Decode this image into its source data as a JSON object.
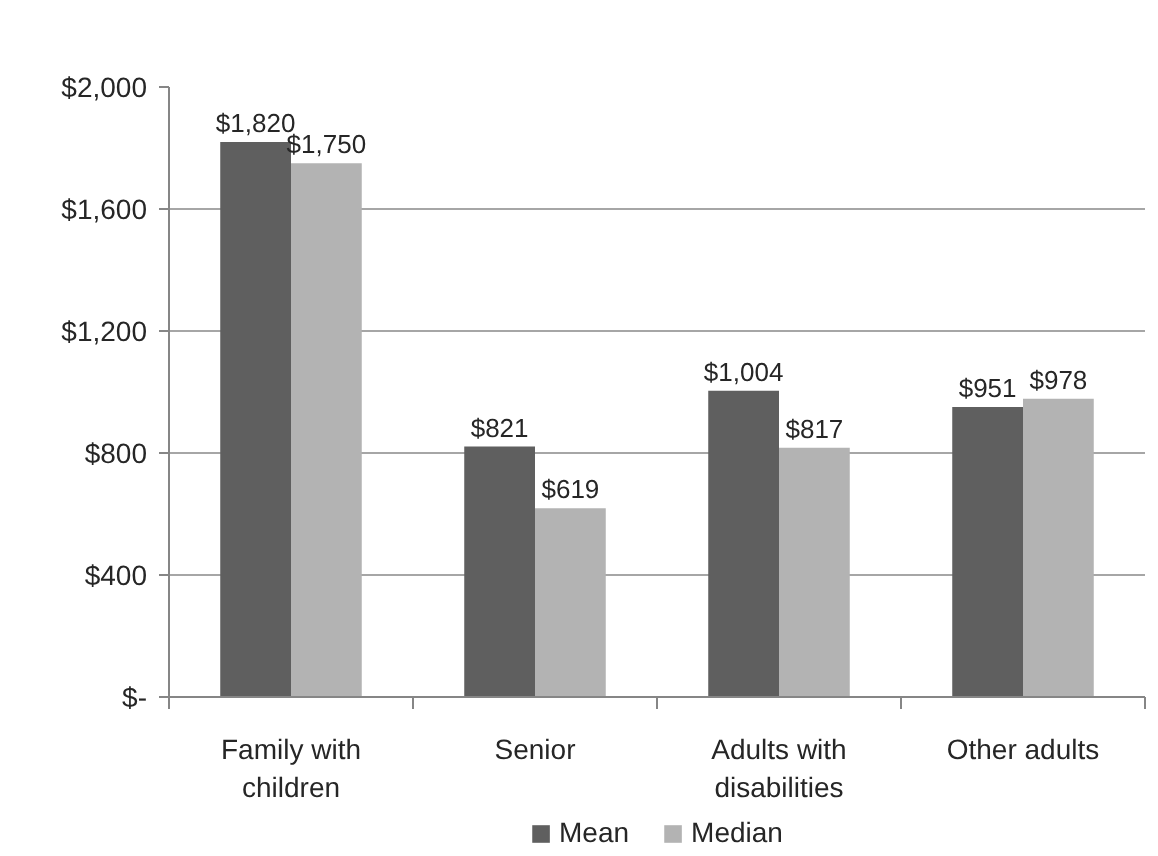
{
  "chart_data": {
    "type": "bar",
    "categories": [
      "Family with children",
      "Senior",
      "Adults with disabilities",
      "Other adults"
    ],
    "series": [
      {
        "name": "Mean",
        "color": "#5f5f5f",
        "values": [
          1820,
          821,
          1004,
          951
        ],
        "value_labels": [
          "$1,820",
          "$821",
          "$1,004",
          "$951"
        ]
      },
      {
        "name": "Median",
        "color": "#b3b3b3",
        "values": [
          1750,
          619,
          817,
          978
        ],
        "value_labels": [
          "$1,750",
          "$619",
          "$817",
          "$978"
        ]
      }
    ],
    "ylim": [
      0,
      2000
    ],
    "yticks": [
      {
        "value": 0,
        "label": "$-"
      },
      {
        "value": 400,
        "label": "$400"
      },
      {
        "value": 800,
        "label": "$800"
      },
      {
        "value": 1200,
        "label": "$1,200"
      },
      {
        "value": 1600,
        "label": "$1,600"
      },
      {
        "value": 2000,
        "label": "$2,000"
      }
    ],
    "grid": "y",
    "legend": "bottom"
  }
}
